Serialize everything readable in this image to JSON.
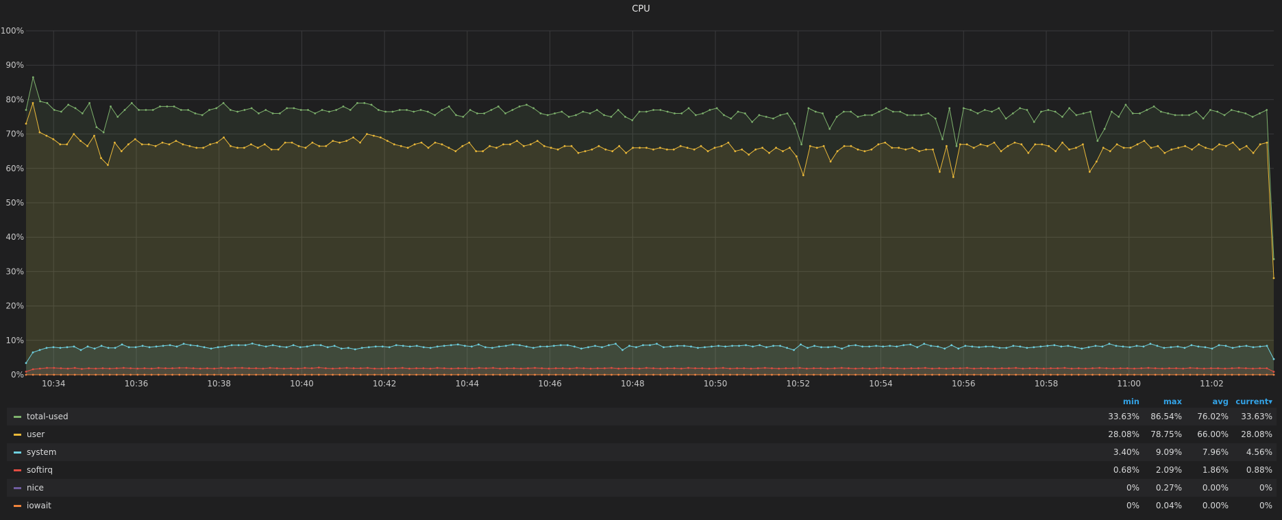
{
  "panel": {
    "title": "CPU"
  },
  "legend": {
    "headers": {
      "min": "min",
      "max": "max",
      "avg": "avg",
      "current": "current"
    },
    "rows": [
      {
        "name": "total-used",
        "color": "#7eb26d",
        "min": "33.63%",
        "max": "86.54%",
        "avg": "76.02%",
        "current": "33.63%"
      },
      {
        "name": "user",
        "color": "#eab839",
        "min": "28.08%",
        "max": "78.75%",
        "avg": "66.00%",
        "current": "28.08%"
      },
      {
        "name": "system",
        "color": "#6ed0e0",
        "min": "3.40%",
        "max": "9.09%",
        "avg": "7.96%",
        "current": "4.56%"
      },
      {
        "name": "softirq",
        "color": "#e24d42",
        "min": "0.68%",
        "max": "2.09%",
        "avg": "1.86%",
        "current": "0.88%"
      },
      {
        "name": "nice",
        "color": "#705da0",
        "min": "0%",
        "max": "0.27%",
        "avg": "0.00%",
        "current": "0%"
      },
      {
        "name": "iowait",
        "color": "#ef843c",
        "min": "0%",
        "max": "0.04%",
        "avg": "0.00%",
        "current": "0%"
      }
    ]
  },
  "chart_data": {
    "type": "line",
    "title": "CPU",
    "ylim": [
      0,
      100
    ],
    "y_ticks": [
      "0%",
      "10%",
      "20%",
      "30%",
      "40%",
      "50%",
      "60%",
      "70%",
      "80%",
      "90%",
      "100%"
    ],
    "x_tick_labels": [
      "10:34",
      "10:36",
      "10:38",
      "10:40",
      "10:42",
      "10:44",
      "10:46",
      "10:48",
      "10:50",
      "10:52",
      "10:54",
      "10:56",
      "10:58",
      "11:00",
      "11:02"
    ],
    "x_range": [
      "10:33:20",
      "11:03:30"
    ],
    "grid": true,
    "legend_placement": "bottom",
    "series": [
      {
        "name": "total-used",
        "color": "#7eb26d",
        "values": [
          77,
          86.5,
          79.5,
          79,
          77,
          76.5,
          78.5,
          77.5,
          76,
          79,
          72,
          70.5,
          78,
          75,
          77,
          79,
          77,
          77,
          77,
          78,
          78,
          78,
          77,
          77,
          76,
          75.5,
          77,
          77.5,
          79,
          77,
          76.5,
          77,
          77.5,
          76,
          77,
          76,
          76,
          77.5,
          77.5,
          77,
          77,
          76,
          77,
          76.5,
          77,
          78,
          77,
          79,
          79,
          78.5,
          77,
          76.5,
          76.5,
          77,
          77,
          76.5,
          77,
          76.5,
          75.5,
          77,
          78,
          75.5,
          75,
          77,
          76,
          76,
          77,
          78,
          76,
          77,
          78,
          78.5,
          77.5,
          76,
          75.5,
          76,
          76.5,
          75,
          75.5,
          76.5,
          76,
          77,
          75.5,
          75,
          77,
          75,
          74,
          76.5,
          76.5,
          77,
          77,
          76.5,
          76,
          76,
          77.5,
          75.5,
          76,
          77,
          77.5,
          75.5,
          74.5,
          76.5,
          76,
          73.5,
          75.5,
          75,
          74.5,
          75.5,
          76,
          73,
          67,
          77.5,
          76.5,
          76,
          71.5,
          75,
          76.5,
          76.5,
          75,
          75.5,
          75.5,
          76.5,
          77.5,
          76.5,
          76.5,
          75.5,
          75.5,
          75.5,
          76,
          74.5,
          68.5,
          77.5,
          66.5,
          77.5,
          77,
          76,
          77,
          76.5,
          77.5,
          74.5,
          76,
          77.5,
          77,
          73.5,
          76.5,
          77,
          76.5,
          75,
          77.5,
          75.5,
          76,
          76.5,
          68,
          71.5,
          76.5,
          75,
          78.5,
          76,
          76,
          77,
          78,
          76.5,
          76,
          75.5,
          75.5,
          75.5,
          76.5,
          74.5,
          77,
          76.5,
          75.5,
          77,
          76.5,
          76,
          75,
          76,
          77,
          33.63
        ]
      },
      {
        "name": "user",
        "color": "#eab839",
        "values": [
          73,
          79,
          70.5,
          69.5,
          68.5,
          67,
          67,
          70,
          68,
          66.5,
          69.5,
          63,
          61,
          67.5,
          65,
          67,
          68.5,
          67,
          67,
          66.5,
          67.5,
          67,
          68,
          67,
          66.5,
          66,
          66,
          67,
          67.5,
          69,
          66.5,
          66,
          66,
          67,
          66,
          67,
          65.5,
          65.5,
          67.5,
          67.5,
          66.5,
          66,
          67.5,
          66.5,
          66.5,
          68,
          67.5,
          68,
          69,
          67.5,
          70,
          69.5,
          69,
          68,
          67,
          66.5,
          66,
          67,
          67.5,
          66,
          67.5,
          67,
          66,
          65,
          66.5,
          67.5,
          65,
          65,
          66.5,
          66,
          67,
          67,
          68,
          66.5,
          67,
          68,
          66.5,
          66,
          65.5,
          66.5,
          66.5,
          64.5,
          65,
          65.5,
          66.5,
          65.5,
          65,
          66.5,
          64.5,
          66,
          66,
          66,
          65.5,
          66,
          65.5,
          65.5,
          66.5,
          66,
          65.5,
          66.5,
          65,
          66,
          66.5,
          67.5,
          65,
          65.5,
          64,
          65.5,
          66,
          64.5,
          66,
          65,
          66,
          63.5,
          58,
          66.5,
          66,
          66.5,
          62,
          65,
          66.5,
          66.5,
          65.5,
          65,
          65.5,
          67,
          67.5,
          66,
          66,
          65.5,
          66,
          65,
          65.5,
          65.5,
          59,
          66.5,
          57.5,
          67,
          67,
          66,
          67,
          66.5,
          67.5,
          65,
          66.5,
          67.5,
          67,
          64.5,
          67,
          67,
          66.5,
          65,
          67.5,
          65.5,
          66,
          67,
          59,
          62,
          66,
          65,
          67,
          66,
          66,
          67,
          68,
          66,
          66.5,
          64.5,
          65.5,
          66,
          66.5,
          65.5,
          67,
          66,
          65.5,
          67,
          66.5,
          67.5,
          65.5,
          66.5,
          64.5,
          67,
          67.5,
          28.08
        ]
      },
      {
        "name": "system",
        "color": "#6ed0e0",
        "values": [
          3.4,
          6.5,
          7.2,
          7.8,
          8,
          7.8,
          8,
          8.2,
          7.2,
          8.2,
          7.6,
          8.4,
          7.8,
          7.8,
          8.8,
          8,
          8,
          8.4,
          8,
          8.2,
          8.4,
          8.6,
          8.2,
          9,
          8.6,
          8.4,
          8,
          7.6,
          8,
          8.2,
          8.6,
          8.6,
          8.6,
          9.09,
          8.6,
          8.2,
          8.6,
          8.2,
          8,
          8.6,
          8,
          8.2,
          8.6,
          8.6,
          8,
          8.4,
          7.6,
          7.8,
          7.4,
          7.8,
          8,
          8.2,
          8.2,
          8,
          8.6,
          8.4,
          8.2,
          8.4,
          8,
          7.8,
          8.2,
          8.4,
          8.6,
          8.8,
          8.4,
          8.2,
          8.8,
          8,
          7.8,
          8.2,
          8.4,
          8.8,
          8.6,
          8.2,
          7.8,
          8.2,
          8.2,
          8.4,
          8.6,
          8.6,
          8.2,
          7.6,
          8,
          8.4,
          8,
          8.6,
          9,
          7.2,
          8.4,
          8,
          8.6,
          8.6,
          9,
          8,
          8.2,
          8.4,
          8.4,
          8.2,
          7.8,
          8,
          8.2,
          8.4,
          8.2,
          8.4,
          8.4,
          8.6,
          8.2,
          8.6,
          8,
          8.4,
          8.4,
          7.8,
          7.2,
          8.8,
          7.8,
          8.4,
          8,
          8,
          8.2,
          7.6,
          8.4,
          8.6,
          8.2,
          8.2,
          8.4,
          8.2,
          8.4,
          8.2,
          8.6,
          8.8,
          8,
          9,
          8.4,
          8.2,
          7.6,
          8.6,
          7.6,
          8.4,
          8.2,
          8,
          8.2,
          8.2,
          7.8,
          7.8,
          8.4,
          8.2,
          7.8,
          8,
          8.2,
          8.4,
          8.6,
          8.2,
          8.4,
          8,
          7.6,
          8,
          8.4,
          8.2,
          9,
          8.4,
          8.2,
          8,
          8.4,
          8.2,
          9,
          8.4,
          7.8,
          8,
          8.2,
          7.8,
          8.6,
          8.2,
          8,
          7.6,
          8.6,
          8.4,
          7.8,
          8.2,
          8.4,
          8,
          8.2,
          8.4,
          4.56
        ]
      },
      {
        "name": "softirq",
        "color": "#e24d42",
        "values": [
          0.9,
          1.6,
          1.8,
          2,
          2,
          1.9,
          1.8,
          2,
          1.7,
          1.9,
          1.8,
          1.9,
          1.8,
          1.9,
          2,
          1.9,
          1.8,
          1.9,
          1.8,
          2,
          1.9,
          1.9,
          2,
          2,
          1.9,
          1.8,
          1.9,
          1.8,
          2,
          1.9,
          2,
          2,
          1.9,
          1.9,
          1.8,
          2,
          1.9,
          1.8,
          1.9,
          1.8,
          2,
          1.9,
          2.09,
          1.9,
          1.8,
          1.9,
          2,
          1.9,
          1.9,
          2,
          1.8,
          1.8,
          1.9,
          1.9,
          2,
          1.8,
          1.9,
          1.9,
          1.8,
          2,
          1.9,
          1.8,
          1.9,
          1.9,
          1.8,
          2,
          1.9,
          2,
          1.8,
          1.9,
          1.9,
          1.8,
          1.9,
          2,
          1.9,
          1.8,
          1.9,
          1.9,
          1.8,
          2,
          1.9,
          1.8,
          1.9,
          1.9,
          2,
          1.8,
          1.9,
          1.9,
          1.8,
          2,
          1.9,
          1.8,
          1.9,
          1.9,
          1.8,
          2,
          1.9,
          1.9,
          1.8,
          1.9,
          2,
          1.8,
          1.9,
          1.9,
          1.8,
          1.9,
          2,
          1.9,
          1.8,
          1.9,
          1.9,
          2,
          1.8,
          1.9,
          1.9,
          1.8,
          1.9,
          2,
          1.9,
          1.8,
          1.9,
          1.8,
          1.9,
          2,
          1.9,
          1.9,
          1.8,
          1.9,
          1.9,
          2,
          1.8,
          1.9,
          1.8,
          1.9,
          1.9,
          2,
          1.8,
          1.9,
          1.9,
          1.8,
          1.9,
          1.9,
          2,
          1.8,
          1.9,
          1.9,
          1.8,
          1.9,
          1.9,
          2,
          1.8,
          1.9,
          1.8,
          1.9,
          2,
          1.9,
          1.8,
          1.9,
          1.9,
          1.8,
          1.9,
          2,
          1.9,
          1.8,
          1.9,
          1.9,
          1.8,
          2,
          1.9,
          1.8,
          1.9,
          1.9,
          1.8,
          1.9,
          2,
          1.9,
          1.8,
          1.9,
          1.9,
          0.88
        ]
      },
      {
        "name": "nice",
        "color": "#705da0",
        "values": [
          0,
          0,
          0,
          0,
          0,
          0,
          0,
          0,
          0,
          0,
          0,
          0,
          0,
          0,
          0,
          0,
          0,
          0,
          0,
          0,
          0,
          0,
          0,
          0,
          0,
          0,
          0,
          0,
          0,
          0,
          0,
          0,
          0,
          0,
          0,
          0,
          0,
          0,
          0,
          0,
          0,
          0,
          0,
          0,
          0,
          0,
          0,
          0,
          0,
          0,
          0,
          0,
          0,
          0,
          0,
          0,
          0,
          0,
          0,
          0,
          0,
          0,
          0,
          0,
          0,
          0,
          0,
          0,
          0,
          0,
          0,
          0,
          0,
          0,
          0,
          0,
          0,
          0,
          0,
          0,
          0,
          0,
          0,
          0,
          0,
          0,
          0,
          0,
          0,
          0,
          0,
          0,
          0,
          0,
          0,
          0,
          0,
          0,
          0,
          0,
          0,
          0,
          0,
          0,
          0,
          0,
          0,
          0,
          0,
          0,
          0,
          0,
          0,
          0,
          0,
          0,
          0,
          0,
          0,
          0,
          0,
          0,
          0,
          0,
          0,
          0,
          0,
          0,
          0,
          0,
          0,
          0,
          0,
          0,
          0,
          0,
          0,
          0,
          0,
          0,
          0,
          0,
          0,
          0,
          0,
          0,
          0,
          0,
          0,
          0,
          0,
          0,
          0,
          0,
          0,
          0,
          0,
          0,
          0,
          0,
          0,
          0,
          0,
          0,
          0,
          0,
          0,
          0,
          0,
          0,
          0,
          0,
          0,
          0,
          0,
          0,
          0,
          0,
          0,
          0
        ]
      },
      {
        "name": "iowait",
        "color": "#ef843c",
        "values": [
          0,
          0,
          0,
          0,
          0,
          0,
          0,
          0,
          0,
          0,
          0,
          0,
          0,
          0,
          0,
          0,
          0,
          0,
          0,
          0,
          0,
          0,
          0,
          0,
          0,
          0,
          0,
          0,
          0,
          0,
          0,
          0,
          0,
          0,
          0,
          0,
          0,
          0,
          0,
          0,
          0,
          0,
          0,
          0,
          0,
          0,
          0,
          0,
          0,
          0,
          0,
          0,
          0,
          0,
          0,
          0,
          0,
          0,
          0,
          0,
          0,
          0,
          0,
          0,
          0,
          0,
          0,
          0,
          0,
          0,
          0,
          0,
          0,
          0,
          0,
          0,
          0,
          0,
          0,
          0,
          0,
          0,
          0,
          0,
          0,
          0,
          0,
          0,
          0,
          0,
          0,
          0,
          0,
          0,
          0,
          0,
          0,
          0,
          0,
          0,
          0,
          0,
          0,
          0,
          0,
          0,
          0,
          0,
          0,
          0,
          0,
          0,
          0,
          0,
          0,
          0,
          0,
          0,
          0,
          0,
          0,
          0,
          0,
          0,
          0,
          0,
          0,
          0,
          0,
          0,
          0,
          0,
          0,
          0,
          0,
          0,
          0,
          0,
          0,
          0,
          0,
          0,
          0,
          0,
          0,
          0,
          0,
          0,
          0,
          0,
          0,
          0,
          0,
          0,
          0,
          0,
          0,
          0,
          0,
          0,
          0,
          0,
          0,
          0,
          0,
          0,
          0,
          0,
          0,
          0,
          0,
          0,
          0,
          0,
          0,
          0,
          0,
          0,
          0,
          0
        ]
      }
    ]
  }
}
